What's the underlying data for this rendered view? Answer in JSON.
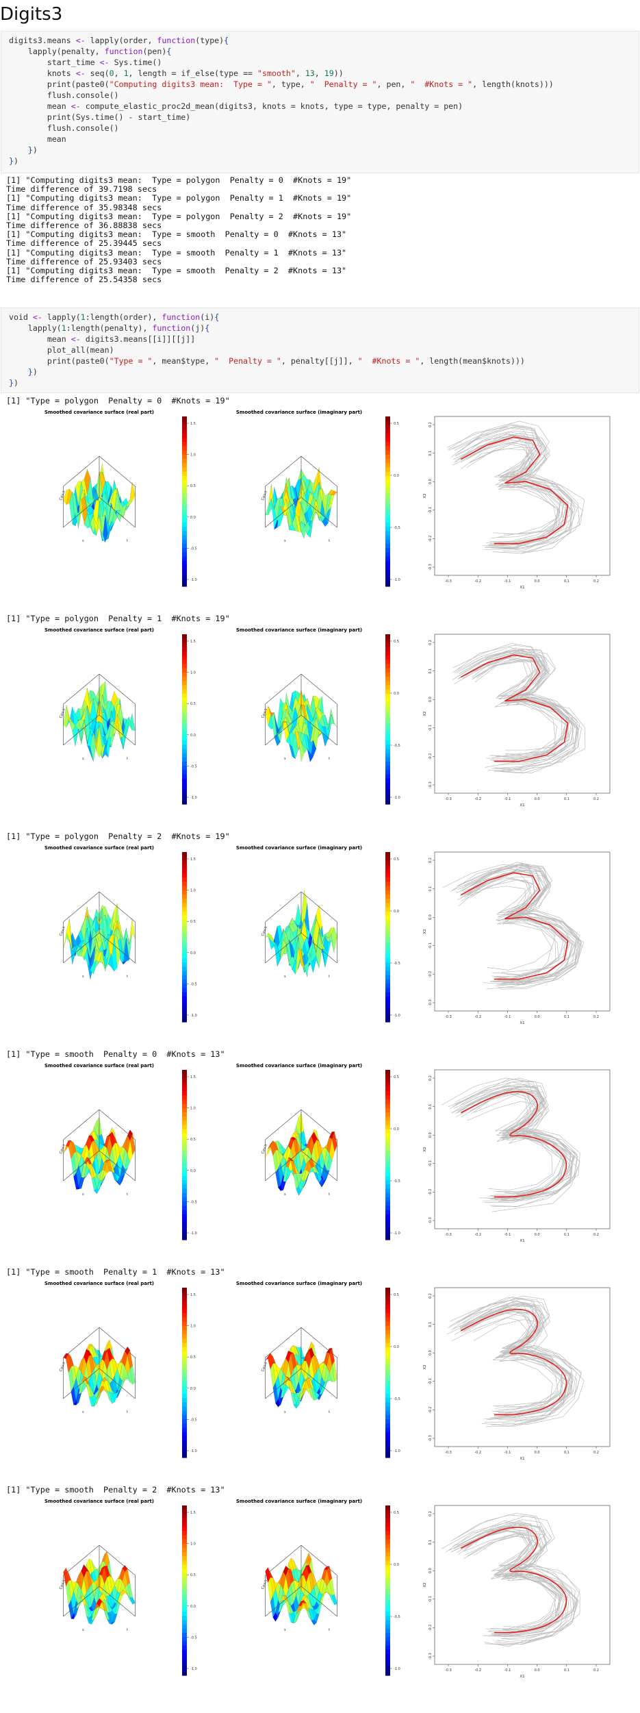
{
  "page": {
    "title": "Digits3"
  },
  "code_block_1": {
    "lines": [
      "digits3.means <- lapply(order, function(type){",
      "    lapply(penalty, function(pen){",
      "        start_time <- Sys.time()",
      "        knots <- seq(0, 1, length = if_else(type == \"smooth\", 13, 19))",
      "        print(paste0(\"Computing digits3 mean:  Type = \", type, \"  Penalty = \", pen, \"  #Knots = \", length(knots)))",
      "        flush.console()",
      "        mean <- compute_elastic_proc2d_mean(digits3, knots = knots, type = type, penalty = pen)",
      "        print(Sys.time() - start_time)",
      "        flush.console()",
      "        mean",
      "    })",
      "})"
    ]
  },
  "output_1": {
    "lines": [
      "[1] \"Computing digits3 mean:  Type = polygon  Penalty = 0  #Knots = 19\"",
      "Time difference of 39.7198 secs",
      "[1] \"Computing digits3 mean:  Type = polygon  Penalty = 1  #Knots = 19\"",
      "Time difference of 35.98348 secs",
      "[1] \"Computing digits3 mean:  Type = polygon  Penalty = 2  #Knots = 19\"",
      "Time difference of 36.88838 secs",
      "[1] \"Computing digits3 mean:  Type = smooth  Penalty = 0  #Knots = 13\"",
      "Time difference of 25.39445 secs",
      "[1] \"Computing digits3 mean:  Type = smooth  Penalty = 1  #Knots = 13\"",
      "Time difference of 25.93403 secs",
      "[1] \"Computing digits3 mean:  Type = smooth  Penalty = 2  #Knots = 13\"",
      "Time difference of 25.54358 secs"
    ]
  },
  "code_block_2": {
    "lines": [
      "void <- lapply(1:length(order), function(i){",
      "    lapply(1:length(penalty), function(j){",
      "        mean <- digits3.means[[i]][[j]]",
      "        plot_all(mean)",
      "        print(paste0(\"Type = \", mean$type, \"  Penalty = \", penalty[[j]], \"  #Knots = \", length(mean$knots)))",
      "    })",
      "})"
    ]
  },
  "plot_common": {
    "real_title": "Smoothed covariance surface (real part)",
    "imag_title": "Smoothed covariance surface (imaginary part)",
    "z_axis_label": "Cov.s",
    "x_axis_label": "s",
    "y_axis_label": "t",
    "real_scale_ticks": [
      "1.5",
      "1.0",
      "0.5",
      "0.0",
      "-0.5",
      "-1.0"
    ],
    "imag_scale_ticks": [
      "0.5",
      "0.0",
      "-0.5",
      "-1.0"
    ],
    "curve_x_label": "X1",
    "curve_y_label": "X2",
    "curve_x_ticks": [
      "-0.3",
      "-0.2",
      "-0.1",
      "0.0",
      "0.1",
      "0.2"
    ],
    "curve_y_ticks": [
      "0.2",
      "0.1",
      "0.0",
      "-0.1",
      "-0.2",
      "-0.3"
    ],
    "colors": {
      "mean_curve": "#e02020",
      "data_curves": "#bdbdbd"
    }
  },
  "plot_sections": [
    {
      "label": "[1] \"Type = polygon  Penalty = 0  #Knots = 19\"",
      "type": "polygon"
    },
    {
      "label": "[1] \"Type = polygon  Penalty = 1  #Knots = 19\"",
      "type": "polygon"
    },
    {
      "label": "[1] \"Type = polygon  Penalty = 2  #Knots = 19\"",
      "type": "polygon"
    },
    {
      "label": "[1] \"Type = smooth  Penalty = 0  #Knots = 13\"",
      "type": "smooth"
    },
    {
      "label": "[1] \"Type = smooth  Penalty = 1  #Knots = 13\"",
      "type": "smooth"
    },
    {
      "label": "[1] \"Type = smooth  Penalty = 2  #Knots = 13\"",
      "type": "smooth"
    }
  ]
}
